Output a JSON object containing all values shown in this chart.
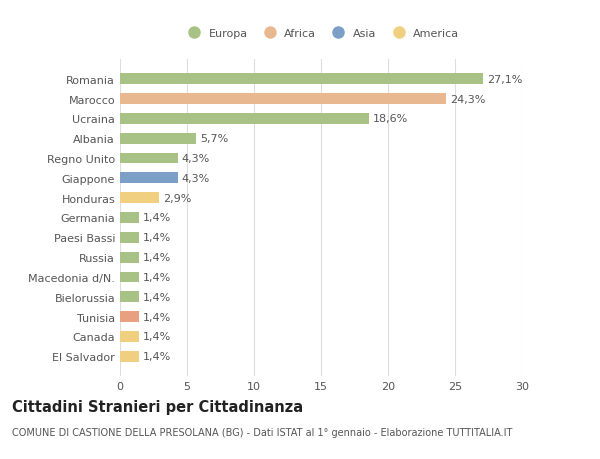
{
  "countries": [
    "Romania",
    "Marocco",
    "Ucraina",
    "Albania",
    "Regno Unito",
    "Giappone",
    "Honduras",
    "Germania",
    "Paesi Bassi",
    "Russia",
    "Macedonia d/N.",
    "Bielorussia",
    "Tunisia",
    "Canada",
    "El Salvador"
  ],
  "values": [
    27.1,
    24.3,
    18.6,
    5.7,
    4.3,
    4.3,
    2.9,
    1.4,
    1.4,
    1.4,
    1.4,
    1.4,
    1.4,
    1.4,
    1.4
  ],
  "labels": [
    "27,1%",
    "24,3%",
    "18,6%",
    "5,7%",
    "4,3%",
    "4,3%",
    "2,9%",
    "1,4%",
    "1,4%",
    "1,4%",
    "1,4%",
    "1,4%",
    "1,4%",
    "1,4%",
    "1,4%"
  ],
  "colors": [
    "#a8c285",
    "#e8b990",
    "#a8c285",
    "#a8c285",
    "#a8c285",
    "#7b9fc7",
    "#f0d080",
    "#a8c285",
    "#a8c285",
    "#a8c285",
    "#a8c285",
    "#a8c285",
    "#e8a080",
    "#f0d080",
    "#f0d080"
  ],
  "legend_labels": [
    "Europa",
    "Africa",
    "Asia",
    "America"
  ],
  "legend_colors": [
    "#a8c285",
    "#e8b990",
    "#7b9fc7",
    "#f0d080"
  ],
  "title": "Cittadini Stranieri per Cittadinanza",
  "subtitle": "COMUNE DI CASTIONE DELLA PRESOLANA (BG) - Dati ISTAT al 1° gennaio - Elaborazione TUTTITALIA.IT",
  "xlim": [
    0,
    30
  ],
  "xticks": [
    0,
    5,
    10,
    15,
    20,
    25,
    30
  ],
  "background_color": "#ffffff",
  "grid_color": "#dddddd",
  "bar_height": 0.55,
  "label_fontsize": 8,
  "tick_fontsize": 8,
  "title_fontsize": 10.5,
  "subtitle_fontsize": 7
}
